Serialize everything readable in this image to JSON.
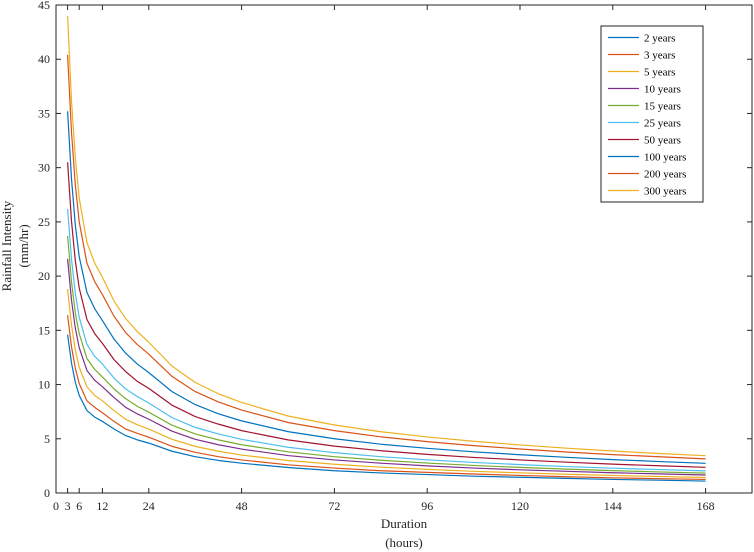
{
  "chart_data": {
    "type": "line",
    "title": "",
    "xlabel_lines": [
      "Duration",
      "(hours)"
    ],
    "ylabel_lines": [
      "Rainfall Intensity",
      "(mm/hr)"
    ],
    "xlim": [
      0,
      180
    ],
    "ylim": [
      0,
      45
    ],
    "x_ticks": [
      0,
      3,
      6,
      12,
      24,
      48,
      72,
      96,
      120,
      144,
      168
    ],
    "x_grid": [
      12,
      24,
      48,
      72,
      96,
      120,
      144,
      168
    ],
    "y_ticks": [
      0,
      5,
      10,
      15,
      20,
      25,
      30,
      35,
      40,
      45
    ],
    "grid": true,
    "legend_position": "top-right",
    "x": [
      3,
      4,
      5,
      6,
      8,
      10,
      12,
      15,
      18,
      21,
      24,
      30,
      36,
      42,
      48,
      60,
      72,
      84,
      96,
      108,
      120,
      132,
      144,
      156,
      168
    ],
    "series": [
      {
        "name": "2 years",
        "color": "#0072BD",
        "values": [
          14.6,
          12.0,
          10.2,
          9.0,
          7.6,
          7.0,
          6.6,
          5.9,
          5.3,
          4.9,
          4.6,
          3.85,
          3.35,
          3.0,
          2.75,
          2.35,
          2.05,
          1.85,
          1.7,
          1.55,
          1.45,
          1.35,
          1.25,
          1.18,
          1.1
        ]
      },
      {
        "name": "3 years",
        "color": "#D95319",
        "values": [
          16.4,
          13.5,
          11.5,
          10.1,
          8.5,
          7.9,
          7.4,
          6.6,
          5.9,
          5.5,
          5.15,
          4.3,
          3.75,
          3.35,
          3.05,
          2.6,
          2.3,
          2.05,
          1.9,
          1.75,
          1.62,
          1.5,
          1.4,
          1.32,
          1.25
        ]
      },
      {
        "name": "5 years",
        "color": "#EDB120",
        "values": [
          18.8,
          15.5,
          13.2,
          11.6,
          9.8,
          9.0,
          8.5,
          7.6,
          6.8,
          6.3,
          5.9,
          4.95,
          4.3,
          3.85,
          3.5,
          3.0,
          2.65,
          2.38,
          2.18,
          2.0,
          1.86,
          1.73,
          1.62,
          1.52,
          1.43
        ]
      },
      {
        "name": "10 years",
        "color": "#7E2F8E",
        "values": [
          21.6,
          17.8,
          15.2,
          13.4,
          11.3,
          10.4,
          9.8,
          8.8,
          7.9,
          7.3,
          6.8,
          5.7,
          4.95,
          4.45,
          4.05,
          3.45,
          3.05,
          2.75,
          2.5,
          2.3,
          2.14,
          2.0,
          1.87,
          1.76,
          1.66
        ]
      },
      {
        "name": "15 years",
        "color": "#77AC30",
        "values": [
          23.7,
          19.5,
          16.6,
          14.7,
          12.4,
          11.4,
          10.7,
          9.6,
          8.7,
          8.0,
          7.45,
          6.25,
          5.45,
          4.9,
          4.45,
          3.8,
          3.35,
          3.02,
          2.76,
          2.54,
          2.36,
          2.2,
          2.06,
          1.94,
          1.83
        ]
      },
      {
        "name": "25 years",
        "color": "#4DBEEE",
        "values": [
          26.2,
          21.6,
          18.4,
          16.2,
          13.7,
          12.6,
          11.9,
          10.6,
          9.6,
          8.9,
          8.3,
          6.95,
          6.05,
          5.45,
          4.95,
          4.22,
          3.72,
          3.35,
          3.06,
          2.82,
          2.62,
          2.44,
          2.29,
          2.16,
          2.04
        ]
      },
      {
        "name": "50 years",
        "color": "#A2142F",
        "values": [
          30.5,
          25.1,
          21.4,
          18.9,
          16.0,
          14.7,
          13.8,
          12.3,
          11.2,
          10.3,
          9.65,
          8.1,
          7.05,
          6.35,
          5.75,
          4.9,
          4.32,
          3.9,
          3.56,
          3.28,
          3.05,
          2.84,
          2.66,
          2.51,
          2.37
        ]
      },
      {
        "name": "100 years",
        "color": "#0072BD",
        "values": [
          35.2,
          29.0,
          24.7,
          21.8,
          18.5,
          17.0,
          15.9,
          14.2,
          12.9,
          11.9,
          11.1,
          9.35,
          8.15,
          7.3,
          6.65,
          5.66,
          5.0,
          4.5,
          4.12,
          3.8,
          3.53,
          3.29,
          3.08,
          2.9,
          2.74
        ]
      },
      {
        "name": "200 years",
        "color": "#D95319",
        "values": [
          40.4,
          33.3,
          28.4,
          25.0,
          21.2,
          19.5,
          18.3,
          16.3,
          14.8,
          13.7,
          12.8,
          10.75,
          9.35,
          8.4,
          7.65,
          6.5,
          5.75,
          5.18,
          4.74,
          4.37,
          4.06,
          3.78,
          3.54,
          3.34,
          3.15
        ]
      },
      {
        "name": "300 years",
        "color": "#EDB120",
        "values": [
          44.0,
          36.2,
          30.9,
          27.2,
          23.1,
          21.2,
          19.9,
          17.7,
          16.1,
          14.9,
          13.9,
          11.7,
          10.2,
          9.15,
          8.35,
          7.1,
          6.27,
          5.65,
          5.17,
          4.77,
          4.43,
          4.13,
          3.87,
          3.64,
          3.44
        ]
      }
    ]
  }
}
